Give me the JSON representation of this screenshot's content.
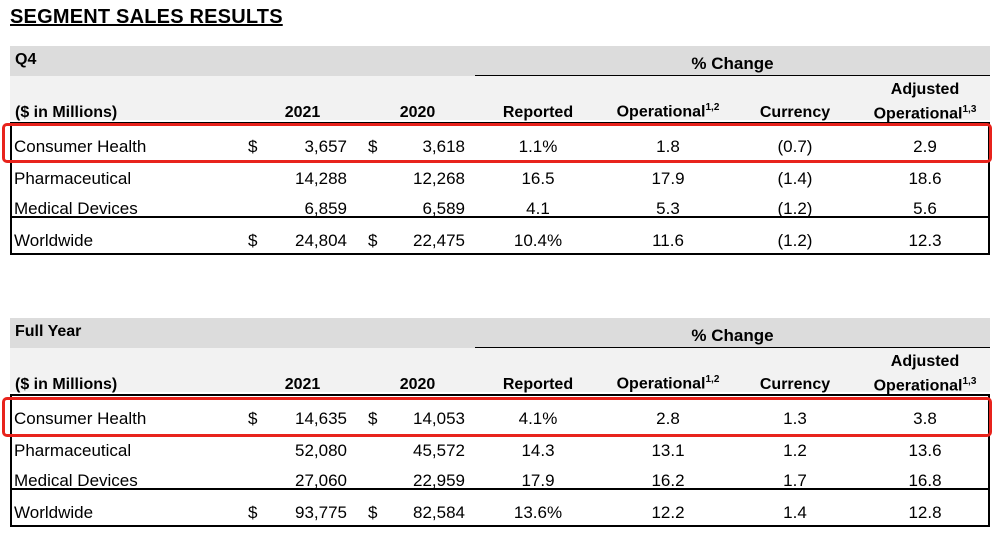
{
  "title": "SEGMENT SALES RESULTS",
  "highlight_color": "#e8231c",
  "sections": [
    {
      "period": "Q4",
      "pct_change": "% Change",
      "headers": {
        "units": "($ in Millions)",
        "y1": "2021",
        "y2": "2020",
        "reported": "Reported",
        "operational": "Operational",
        "operational_sup": "1,2",
        "currency": "Currency",
        "adjusted_line1": "Adjusted",
        "adjusted_line2": "Operational",
        "adjusted_sup": "1,3"
      },
      "rows": [
        {
          "label": "Consumer Health",
          "d1": "$",
          "v2021": "3,657",
          "d2": "$",
          "v2020": "3,618",
          "reported": "1.1%",
          "operational": "1.8",
          "currency": "(0.7)",
          "adjusted": "2.9"
        },
        {
          "label": "Pharmaceutical",
          "d1": "",
          "v2021": "14,288",
          "d2": "",
          "v2020": "12,268",
          "reported": "16.5",
          "operational": "17.9",
          "currency": "(1.4)",
          "adjusted": "18.6"
        },
        {
          "label": "Medical Devices",
          "d1": "",
          "v2021": "6,859",
          "d2": "",
          "v2020": "6,589",
          "reported": "4.1",
          "operational": "5.3",
          "currency": "(1.2)",
          "adjusted": "5.6"
        },
        {
          "label": "Worldwide",
          "d1": "$",
          "v2021": "24,804",
          "d2": "$",
          "v2020": "22,475",
          "reported": "10.4%",
          "operational": "11.6",
          "currency": "(1.2)",
          "adjusted": "12.3"
        }
      ]
    },
    {
      "period": "Full Year",
      "pct_change": "% Change",
      "headers": {
        "units": "($ in Millions)",
        "y1": "2021",
        "y2": "2020",
        "reported": "Reported",
        "operational": "Operational",
        "operational_sup": "1,2",
        "currency": "Currency",
        "adjusted_line1": "Adjusted",
        "adjusted_line2": "Operational",
        "adjusted_sup": "1,3"
      },
      "rows": [
        {
          "label": "Consumer Health",
          "d1": "$",
          "v2021": "14,635",
          "d2": "$",
          "v2020": "14,053",
          "reported": "4.1%",
          "operational": "2.8",
          "currency": "1.3",
          "adjusted": "3.8"
        },
        {
          "label": "Pharmaceutical",
          "d1": "",
          "v2021": "52,080",
          "d2": "",
          "v2020": "45,572",
          "reported": "14.3",
          "operational": "13.1",
          "currency": "1.2",
          "adjusted": "13.6"
        },
        {
          "label": "Medical Devices",
          "d1": "",
          "v2021": "27,060",
          "d2": "",
          "v2020": "22,959",
          "reported": "17.9",
          "operational": "16.2",
          "currency": "1.7",
          "adjusted": "16.8"
        },
        {
          "label": "Worldwide",
          "d1": "$",
          "v2021": "93,775",
          "d2": "$",
          "v2020": "82,584",
          "reported": "13.6%",
          "operational": "12.2",
          "currency": "1.4",
          "adjusted": "12.8"
        }
      ]
    }
  ]
}
